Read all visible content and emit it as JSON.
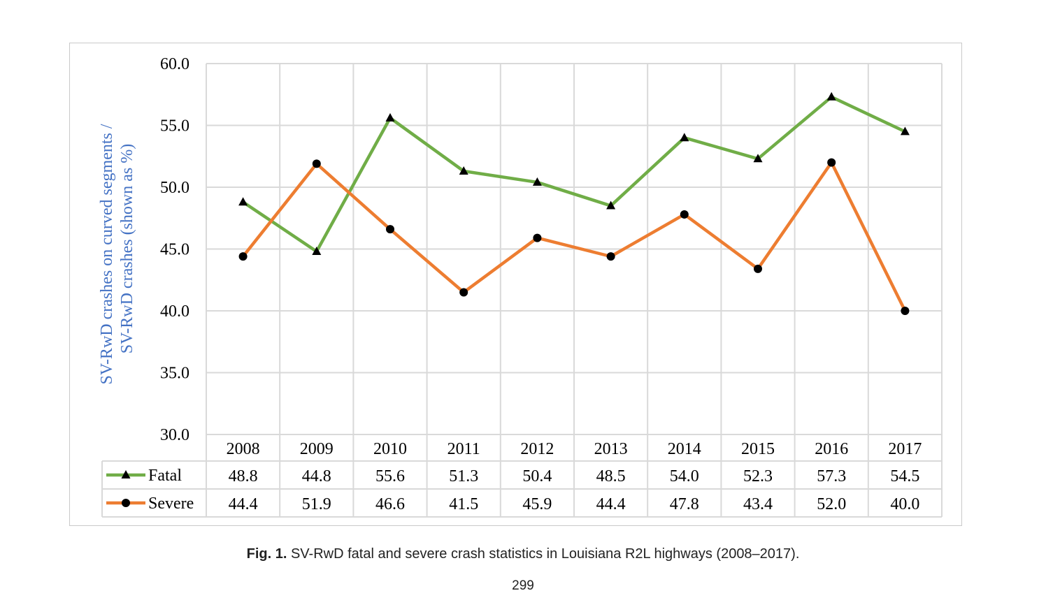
{
  "chart_data": {
    "type": "line",
    "categories": [
      "2008",
      "2009",
      "2010",
      "2011",
      "2012",
      "2013",
      "2014",
      "2015",
      "2016",
      "2017"
    ],
    "series": [
      {
        "name": "Fatal",
        "values": [
          48.8,
          44.8,
          55.6,
          51.3,
          50.4,
          48.5,
          54.0,
          52.3,
          57.3,
          54.5
        ],
        "color": "#70ad47",
        "marker": "triangle"
      },
      {
        "name": "Severe",
        "values": [
          44.4,
          51.9,
          46.6,
          41.5,
          45.9,
          44.4,
          47.8,
          43.4,
          52.0,
          40.0
        ],
        "color": "#ed7d31",
        "marker": "circle"
      }
    ],
    "ylabel_line1": "SV-RwD crashes on curved segments /",
    "ylabel_line2": "SV-RwD crashes (shown as %)",
    "ylabel_color": "#4472c4",
    "ylim": [
      30,
      60
    ],
    "yticks": [
      30,
      35,
      40,
      45,
      50,
      55,
      60
    ],
    "ytick_labels": [
      "30.0",
      "35.0",
      "40.0",
      "45.0",
      "50.0",
      "55.0",
      "60.0"
    ],
    "grid": true,
    "data_table": true,
    "fatal_cells": [
      "48.8",
      "44.8",
      "55.6",
      "51.3",
      "50.4",
      "48.5",
      "54.0",
      "52.3",
      "57.3",
      "54.5"
    ],
    "severe_cells": [
      "44.4",
      "51.9",
      "46.6",
      "41.5",
      "45.9",
      "44.4",
      "47.8",
      "43.4",
      "52.0",
      "40.0"
    ]
  },
  "caption": {
    "label": "Fig. 1.",
    "text": "SV-RwD fatal and severe crash statistics in Louisiana R2L highways (2008–2017)."
  },
  "page_number": "299"
}
